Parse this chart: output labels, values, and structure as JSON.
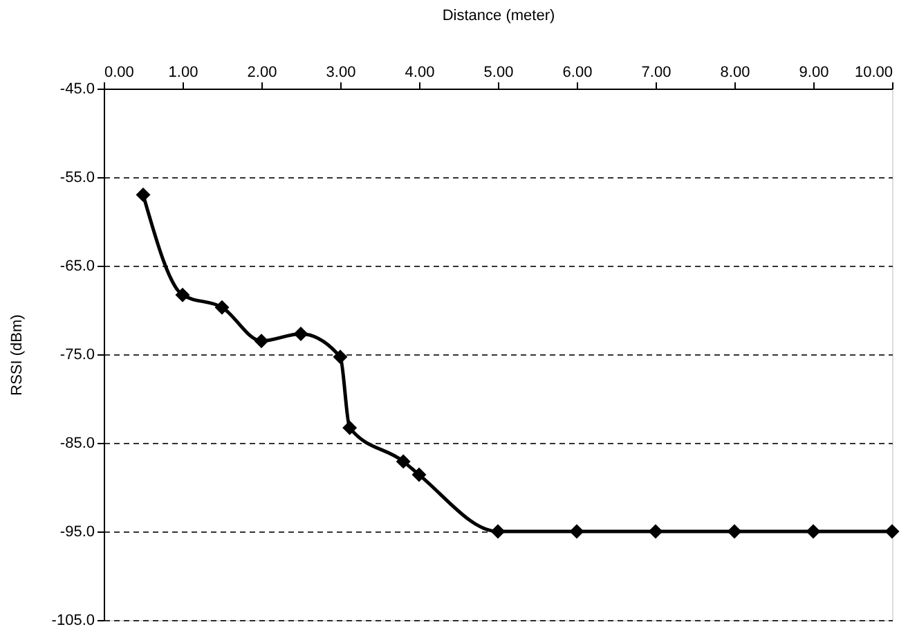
{
  "chart_data": {
    "type": "line",
    "xlabel": "Distance (meter)",
    "ylabel": "RSSI (dBm)",
    "x": [
      0.5,
      1.0,
      1.5,
      2.0,
      2.5,
      3.0,
      3.12,
      3.8,
      4.0,
      5.0,
      6.0,
      7.0,
      8.0,
      9.0,
      10.0
    ],
    "series": [
      {
        "color": "#000000",
        "values": [
          -57,
          -68.3,
          -69.7,
          -73.5,
          -72.7,
          -75.3,
          -83.3,
          -87.1,
          -88.6,
          -95,
          -95,
          -95,
          -95,
          -95,
          -95
        ]
      }
    ],
    "xlim": [
      0,
      10
    ],
    "xticks": [
      {
        "value": 0,
        "label": "0.00"
      },
      {
        "value": 1,
        "label": "1.00"
      },
      {
        "value": 2,
        "label": "2.00"
      },
      {
        "value": 3,
        "label": "3.00"
      },
      {
        "value": 4,
        "label": "4.00"
      },
      {
        "value": 5,
        "label": "5.00"
      },
      {
        "value": 6,
        "label": "6.00"
      },
      {
        "value": 7,
        "label": "7.00"
      },
      {
        "value": 8,
        "label": "8.00"
      },
      {
        "value": 9,
        "label": "9.00"
      },
      {
        "value": 10,
        "label": "10.00"
      }
    ],
    "ylim": [
      -105,
      -45
    ],
    "yticks": [
      {
        "value": -45,
        "label": "-45.0"
      },
      {
        "value": -55,
        "label": "-55.0"
      },
      {
        "value": -65,
        "label": "-65.0"
      },
      {
        "value": -75,
        "label": "-75.0"
      },
      {
        "value": -85,
        "label": "-85.0"
      },
      {
        "value": -95,
        "label": "-95.0"
      },
      {
        "value": -105,
        "label": "-105.0"
      }
    ],
    "grid": "y",
    "marker": "diamond",
    "line_style": "solid",
    "legend": false
  }
}
